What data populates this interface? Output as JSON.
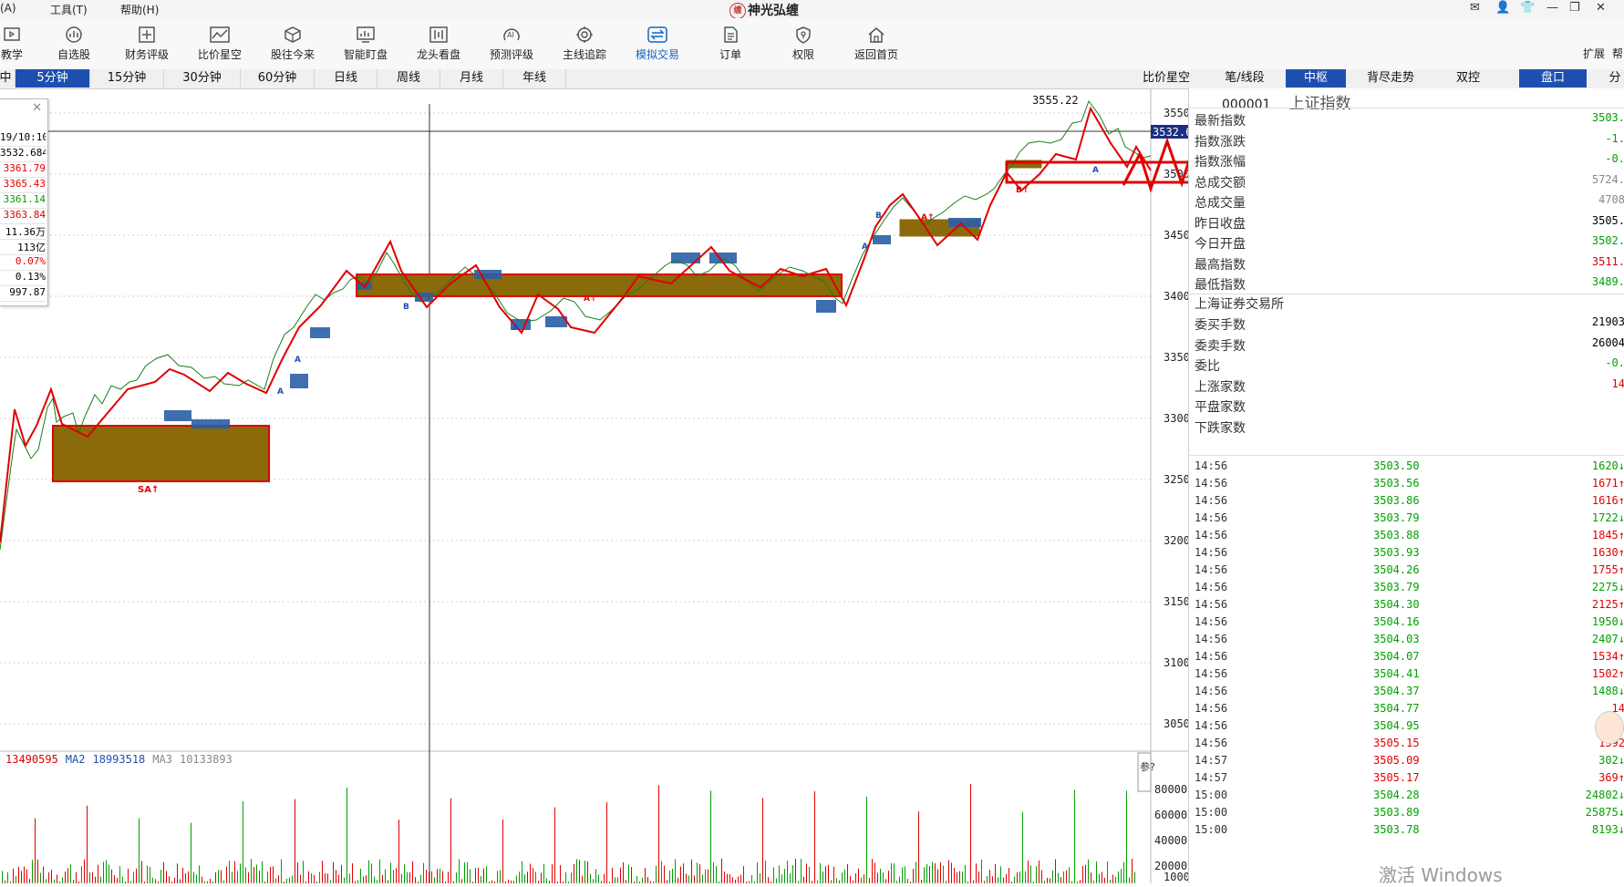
{
  "menu": {
    "items": [
      "(A)",
      "工具(T)",
      "帮助(H)"
    ]
  },
  "app_title": "神光弘缠",
  "toolbar": {
    "items": [
      {
        "label": "教学",
        "icon": "teach-icon"
      },
      {
        "label": "自选股",
        "icon": "watchlist-icon"
      },
      {
        "label": "财务评级",
        "icon": "finance-icon"
      },
      {
        "label": "比价星空",
        "icon": "compare-icon"
      },
      {
        "label": "股往今来",
        "icon": "history-icon"
      },
      {
        "label": "智能盯盘",
        "icon": "monitor-icon"
      },
      {
        "label": "龙头看盘",
        "icon": "leader-icon"
      },
      {
        "label": "预测评级",
        "icon": "ai-predict-icon"
      },
      {
        "label": "主线追踪",
        "icon": "track-icon"
      },
      {
        "label": "模拟交易",
        "icon": "simtrade-icon"
      },
      {
        "label": "订单",
        "icon": "order-icon"
      },
      {
        "label": "权限",
        "icon": "permission-icon"
      },
      {
        "label": "返回首页",
        "icon": "home-icon"
      }
    ],
    "right_labels": [
      "扩展",
      "帮"
    ]
  },
  "period_tabs": [
    {
      "label": "中"
    },
    {
      "label": "5分钟"
    },
    {
      "label": "15分钟"
    },
    {
      "label": "30分钟"
    },
    {
      "label": "60分钟"
    },
    {
      "label": "日线"
    },
    {
      "label": "周线"
    },
    {
      "label": "月线"
    },
    {
      "label": "年线"
    }
  ],
  "right_tabs": [
    {
      "label": "比价星空"
    },
    {
      "label": "笔/线段"
    },
    {
      "label": "中枢"
    },
    {
      "label": "背尽走势"
    },
    {
      "label": "双控"
    },
    {
      "label": "盘口"
    },
    {
      "label": "分"
    }
  ],
  "data_window": {
    "rows": [
      {
        "text": "19/10:10",
        "color": "#000000"
      },
      {
        "text": "3532.684",
        "color": "#000000"
      },
      {
        "text": "3361.79",
        "color": "#e00000"
      },
      {
        "text": "3365.43",
        "color": "#e00000"
      },
      {
        "text": "3361.14",
        "color": "#00a000"
      },
      {
        "text": "3363.84",
        "color": "#e00000"
      },
      {
        "text": "11.36万",
        "color": "#000000"
      },
      {
        "text": "113亿",
        "color": "#000000"
      },
      {
        "text": "0.07%",
        "color": "#e00000"
      },
      {
        "text": "0.13%",
        "color": "#000000"
      },
      {
        "text": "997.87",
        "color": "#000000"
      }
    ]
  },
  "chart": {
    "price_axis_ticks": [
      "3550",
      "3500",
      "3450",
      "3400",
      "3350",
      "3300",
      "3250",
      "3200",
      "3150",
      "3100",
      "3050"
    ],
    "current_price_label": "3532.6",
    "peak_label": "3555.22",
    "volume_axis_ticks": [
      "80000",
      "60000",
      "40000",
      "20000",
      "1000"
    ],
    "volume_side_label": "参?",
    "markers": [
      {
        "text": "SA↑",
        "color": "#e00000"
      },
      {
        "text": "A",
        "color": "#1f4fae"
      },
      {
        "text": "B",
        "color": "#1f4fae"
      },
      {
        "text": "B↑",
        "color": "#e00000"
      },
      {
        "text": "A↑",
        "color": "#e00000"
      }
    ]
  },
  "volume_legend": {
    "ma1": "13490595",
    "ma2_label": "MA2",
    "ma2": "18993518",
    "ma3_label": "MA3",
    "ma3": "10133893"
  },
  "quote": {
    "code": "000001",
    "name": "上证指数",
    "rows": [
      {
        "label": "最新指数",
        "value": "3503.",
        "color": "#00a000"
      },
      {
        "label": "指数涨跌",
        "value": "-1.",
        "color": "#00a000"
      },
      {
        "label": "指数涨幅",
        "value": "-0.",
        "color": "#00a000"
      },
      {
        "label": "总成交额",
        "value": "5724.",
        "color": "#888888"
      },
      {
        "label": "总成交量",
        "value": "4708",
        "color": "#888888"
      },
      {
        "label": "昨日收盘",
        "value": "3505.",
        "color": "#000000"
      },
      {
        "label": "今日开盘",
        "value": "3502.",
        "color": "#00a000"
      },
      {
        "label": "最高指数",
        "value": "3511.",
        "color": "#e00000"
      },
      {
        "label": "最低指数",
        "value": "3489.",
        "color": "#00a000"
      }
    ],
    "exchange": "上海证券交易所",
    "rows2": [
      {
        "label": "委买手数",
        "value": "21903",
        "color": "#000000"
      },
      {
        "label": "委卖手数",
        "value": "26004",
        "color": "#000000"
      },
      {
        "label": "委比",
        "value": "-0.",
        "color": "#00a000"
      },
      {
        "label": "上涨家数",
        "value": "14",
        "color": "#e00000"
      },
      {
        "label": "平盘家数",
        "value": "",
        "color": "#000000"
      },
      {
        "label": "下跌家数",
        "value": "",
        "color": "#00a000"
      }
    ]
  },
  "ticks": [
    {
      "time": "14:56",
      "price": "3503.50",
      "vol": "1620↓",
      "pc": "#00a000",
      "vc": "#00a000"
    },
    {
      "time": "14:56",
      "price": "3503.56",
      "vol": "1671↑",
      "pc": "#00a000",
      "vc": "#e00000"
    },
    {
      "time": "14:56",
      "price": "3503.86",
      "vol": "1616↑",
      "pc": "#00a000",
      "vc": "#e00000"
    },
    {
      "time": "14:56",
      "price": "3503.79",
      "vol": "1722↓",
      "pc": "#00a000",
      "vc": "#00a000"
    },
    {
      "time": "14:56",
      "price": "3503.88",
      "vol": "1845↑",
      "pc": "#00a000",
      "vc": "#e00000"
    },
    {
      "time": "14:56",
      "price": "3503.93",
      "vol": "1630↑",
      "pc": "#00a000",
      "vc": "#e00000"
    },
    {
      "time": "14:56",
      "price": "3504.26",
      "vol": "1755↑",
      "pc": "#00a000",
      "vc": "#e00000"
    },
    {
      "time": "14:56",
      "price": "3503.79",
      "vol": "2275↓",
      "pc": "#00a000",
      "vc": "#00a000"
    },
    {
      "time": "14:56",
      "price": "3504.30",
      "vol": "2125↑",
      "pc": "#00a000",
      "vc": "#e00000"
    },
    {
      "time": "14:56",
      "price": "3504.16",
      "vol": "1950↓",
      "pc": "#00a000",
      "vc": "#00a000"
    },
    {
      "time": "14:56",
      "price": "3504.03",
      "vol": "2407↓",
      "pc": "#00a000",
      "vc": "#00a000"
    },
    {
      "time": "14:56",
      "price": "3504.07",
      "vol": "1534↑",
      "pc": "#00a000",
      "vc": "#e00000"
    },
    {
      "time": "14:56",
      "price": "3504.41",
      "vol": "1502↑",
      "pc": "#00a000",
      "vc": "#e00000"
    },
    {
      "time": "14:56",
      "price": "3504.37",
      "vol": "1488↓",
      "pc": "#00a000",
      "vc": "#00a000"
    },
    {
      "time": "14:56",
      "price": "3504.77",
      "vol": "14",
      "pc": "#00a000",
      "vc": "#e00000"
    },
    {
      "time": "14:56",
      "price": "3504.95",
      "vol": "1",
      "pc": "#00a000",
      "vc": "#e00000"
    },
    {
      "time": "14:56",
      "price": "3505.15",
      "vol": "1392",
      "pc": "#e00000",
      "vc": "#e00000"
    },
    {
      "time": "14:57",
      "price": "3505.09",
      "vol": "302↓",
      "pc": "#e00000",
      "vc": "#00a000"
    },
    {
      "time": "14:57",
      "price": "3505.17",
      "vol": "369↑",
      "pc": "#e00000",
      "vc": "#e00000"
    },
    {
      "time": "15:00",
      "price": "3504.28",
      "vol": "24802↓",
      "pc": "#00a000",
      "vc": "#00a000"
    },
    {
      "time": "15:00",
      "price": "3503.89",
      "vol": "25875↓",
      "pc": "#00a000",
      "vc": "#00a000"
    },
    {
      "time": "15:00",
      "price": "3503.78",
      "vol": "8193↓",
      "pc": "#00a000",
      "vc": "#00a000"
    }
  ],
  "watermark": "激活 Windows"
}
